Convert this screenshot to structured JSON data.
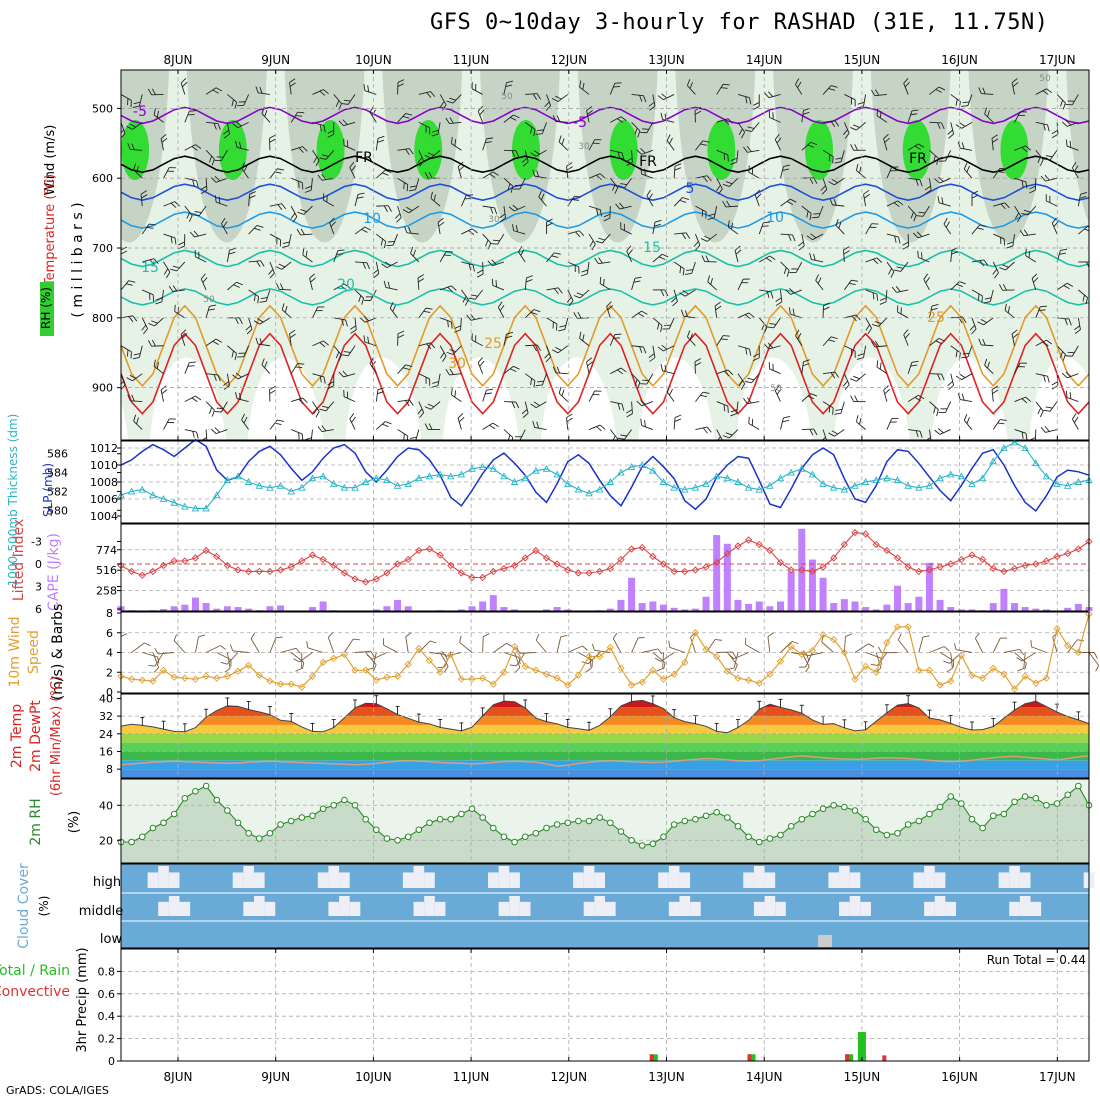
{
  "title": "GFS 0~10day 3-hourly for RASHAD (31E, 11.75N)",
  "footer": "GrADS: COLA/IGES",
  "colors": {
    "rh_green": "#00dd00",
    "rh_light": "#e6f2e6",
    "temp_purple": "#8800cc",
    "temp_blue": "#1e4fd8",
    "temp_cyan": "#1e9ae6",
    "temp_teal": "#1cc0a8",
    "temp_orange": "#e29a2a",
    "temp_red": "#dd2222",
    "slp_line": "#1a32c8",
    "thickness_line": "#2ab4c8",
    "lifted_index": "#dd4444",
    "cape_bar": "#c080ff",
    "wind_speed": "#e0a030",
    "rh2m": "#2a8a2a",
    "cloud_bg": "#6aaad6",
    "cloud_fill": "#eeeef6",
    "precip_total": "#22c022",
    "precip_conv": "#dd3333"
  },
  "chart_data": [
    {
      "id": "upper_air",
      "type": "heatmap",
      "ylabel_wind": "Wind (m/s)",
      "ylabel_temp": "Temperature (°C)",
      "ylabel_rh": "RH (%)",
      "ylabel_axis": "( m i l l i b a r s )",
      "y_ticks": [
        500,
        600,
        700,
        800,
        900
      ],
      "ylim": [
        975,
        445
      ],
      "x_ticks": [
        "8JUN",
        "9JUN",
        "10JUN",
        "11JUN",
        "12JUN",
        "13JUN",
        "14JUN",
        "15JUN",
        "16JUN",
        "17JUN"
      ],
      "contour_labels": [
        "-5",
        "-5",
        "FR",
        "FR",
        "FR",
        "5",
        "10",
        "10",
        "15",
        "15",
        "20",
        "25",
        "25",
        "30",
        "50",
        "50",
        "30",
        "30",
        "50",
        "50"
      ],
      "isotherms": [
        {
          "temp": -5,
          "mean_level": 510
        },
        {
          "temp": 0,
          "mean_level": 580
        },
        {
          "temp": 5,
          "mean_level": 620
        },
        {
          "temp": 10,
          "mean_level": 660
        },
        {
          "temp": 15,
          "mean_level": 715
        },
        {
          "temp": 20,
          "mean_level": 770
        },
        {
          "temp": 25,
          "mean_level": 840
        },
        {
          "temp": 30,
          "mean_level": 880
        }
      ]
    },
    {
      "id": "slp_thickness",
      "type": "line",
      "ylabel_left": "1000-500mb Thickness (dm)",
      "ylabel_right": "SLP (mb)",
      "left_ticks": [
        580,
        582,
        584,
        586
      ],
      "right_ticks": [
        1004,
        1006,
        1008,
        1010,
        1012
      ],
      "series": [
        {
          "name": "SLP (mb)",
          "axis": "right",
          "values": [
            1010,
            1010.6,
            1011.6,
            1012.4,
            1011.8,
            1011,
            1012,
            1013,
            1012.2,
            1009.4,
            1008.2,
            1008.6,
            1010.4,
            1011.6,
            1012.2,
            1011.2,
            1009.6,
            1008.2,
            1009.2,
            1010.8,
            1012,
            1012.4,
            1011.4,
            1009.2,
            1008,
            1009.4,
            1011,
            1012,
            1011.8,
            1010.6,
            1008.8,
            1006.2,
            1005.2,
            1007,
            1009,
            1010.6,
            1011.4,
            1010.2,
            1008.8,
            1006.8,
            1005.6,
            1007.8,
            1010.4,
            1011.2,
            1010.2,
            1008.2,
            1006.4,
            1005.2,
            1007.4,
            1009.8,
            1011,
            1009.8,
            1008.4,
            1005.8,
            1004.8,
            1006,
            1008.6,
            1010,
            1011,
            1010.8,
            1008.2,
            1005.4,
            1005,
            1007.2,
            1009.6,
            1011.2,
            1012,
            1011.2,
            1008.4,
            1006,
            1005.6,
            1007.6,
            1010.4,
            1011.8,
            1011.6,
            1010.2,
            1008.6,
            1007,
            1005.8,
            1007.6,
            1009.6,
            1011.4,
            1011.8,
            1010,
            1007.6,
            1005.6,
            1004.6,
            1006.4,
            1008.6,
            1009.4,
            1009.2,
            1008.8
          ]
        },
        {
          "name": "1000-500mb Thickness (dm)",
          "axis": "left",
          "values": [
            581.6,
            582.0,
            582.2,
            581.6,
            581.2,
            580.8,
            580.4,
            580.2,
            580.2,
            581.6,
            583.2,
            583.6,
            583.0,
            582.6,
            582.4,
            582.6,
            582.0,
            582.4,
            583.4,
            583.6,
            582.8,
            582.4,
            582.4,
            583.0,
            583.4,
            583.2,
            582.6,
            582.8,
            583.4,
            583.6,
            583.8,
            583.6,
            583.8,
            584.4,
            584.6,
            584.4,
            583.6,
            583.0,
            583.4,
            584.2,
            584.4,
            583.8,
            582.8,
            582.2,
            581.8,
            582.2,
            583.0,
            584.0,
            584.6,
            584.8,
            584.2,
            583.0,
            582.4,
            582.2,
            582.4,
            582.8,
            583.6,
            583.4,
            583.0,
            582.4,
            582.2,
            582.6,
            583.4,
            584.0,
            584.4,
            583.8,
            582.8,
            582.4,
            582.2,
            582.6,
            583.0,
            583.2,
            583.4,
            583.2,
            582.6,
            582.4,
            582.6,
            583.4,
            583.8,
            583.6,
            582.8,
            583.4,
            585.2,
            586.6,
            587.2,
            586.6,
            585.0,
            583.6,
            582.8,
            582.6,
            583.0,
            583.2
          ]
        }
      ]
    },
    {
      "id": "li_cape",
      "type": "bar",
      "ylabel_left": "Lifted Index",
      "ylabel_right": "CAPE (J/kg)",
      "li_ticks": [
        -3,
        0,
        3,
        6
      ],
      "cape_ticks": [
        258,
        516,
        774
      ],
      "series": [
        {
          "name": "Lifted Index",
          "values": [
            0.2,
            1.0,
            1.5,
            1.0,
            0.2,
            -0.4,
            -0.4,
            -0.8,
            -1.8,
            -1.0,
            0.2,
            0.8,
            1.0,
            1.0,
            1.0,
            0.8,
            0.4,
            -0.4,
            -1.2,
            -0.6,
            0.2,
            1.2,
            2.0,
            2.4,
            2.0,
            1.2,
            0.0,
            -0.6,
            -1.8,
            -2.0,
            -1.2,
            0.2,
            1.2,
            1.8,
            1.8,
            1.0,
            0.6,
            0.2,
            -0.8,
            -1.8,
            -0.8,
            0.0,
            0.8,
            1.2,
            1.2,
            1.0,
            0.6,
            -0.6,
            -2.0,
            -2.2,
            -1.0,
            0.0,
            1.0,
            1.0,
            0.8,
            0.4,
            -0.2,
            -1.4,
            -2.4,
            -3.2,
            -2.6,
            -1.8,
            -0.2,
            0.8,
            0.8,
            1.0,
            0.4,
            -0.8,
            -2.6,
            -4.2,
            -4.0,
            -2.6,
            -1.8,
            -0.8,
            0.4,
            1.0,
            0.8,
            0.4,
            0.0,
            -0.6,
            -1.2,
            -0.6,
            0.6,
            1.0,
            0.6,
            0.2,
            0.0,
            -0.4,
            -1.0,
            -1.4,
            -2.0,
            -3.0
          ]
        },
        {
          "name": "CAPE (J/kg)",
          "values": [
            60,
            10,
            5,
            10,
            25,
            60,
            80,
            170,
            100,
            30,
            60,
            50,
            30,
            10,
            60,
            70,
            5,
            5,
            50,
            120,
            10,
            5,
            5,
            5,
            20,
            60,
            140,
            60,
            5,
            5,
            10,
            5,
            20,
            60,
            120,
            200,
            50,
            20,
            5,
            5,
            20,
            50,
            20,
            5,
            5,
            10,
            30,
            140,
            420,
            100,
            120,
            80,
            40,
            20,
            30,
            180,
            960,
            850,
            140,
            90,
            120,
            60,
            120,
            500,
            1040,
            650,
            420,
            100,
            150,
            120,
            50,
            20,
            80,
            320,
            100,
            180,
            610,
            140,
            50,
            20,
            20,
            10,
            100,
            280,
            100,
            50,
            30,
            20,
            5,
            40,
            90,
            50
          ]
        }
      ]
    },
    {
      "id": "wind10m",
      "type": "line",
      "ylabel": "10m Wind Speed (m/s) & Barbs",
      "y_ticks": [
        0,
        2,
        4,
        6,
        8
      ],
      "ylim": [
        0,
        8
      ],
      "series": [
        {
          "name": "10m Wind Speed",
          "values": [
            1.6,
            1.3,
            1.2,
            1.1,
            2.2,
            1.5,
            1.4,
            1.3,
            1.6,
            1.4,
            1.6,
            2.1,
            2.7,
            1.7,
            1.1,
            0.8,
            0.8,
            0.5,
            1.6,
            3.0,
            3.4,
            3.8,
            2.2,
            2.2,
            1.2,
            1.5,
            1.6,
            2.8,
            4.4,
            3.2,
            2.0,
            3.8,
            1.3,
            1.3,
            1.4,
            0.8,
            2.0,
            4.6,
            2.6,
            2.2,
            1.8,
            1.4,
            0.7,
            1.7,
            3.6,
            3.6,
            4.5,
            2.4,
            0.7,
            1.0,
            2.2,
            1.3,
            1.8,
            3.0,
            6.0,
            4.3,
            3.6,
            2.1,
            1.4,
            1.2,
            0.9,
            1.8,
            3.1,
            4.6,
            3.8,
            4.2,
            5.8,
            5.3,
            4.0,
            1.3,
            2.6,
            2.0,
            5.0,
            6.6,
            6.6,
            2.2,
            2.2,
            0.7,
            1.1,
            3.7,
            1.7,
            1.4,
            2.4,
            1.8,
            0.3,
            1.6,
            0.9,
            1.4,
            6.4,
            4.7,
            4.0,
            7.9
          ]
        }
      ]
    },
    {
      "id": "temp2m",
      "type": "area",
      "ylabel": "2m Temp 2m DewPt (6hr Min/Max) (°C)",
      "y_ticks": [
        8,
        16,
        24,
        32,
        40
      ],
      "ylim": [
        4,
        42
      ],
      "series": [
        {
          "name": "2m Temp",
          "values": [
            27.5,
            28.3,
            27.8,
            27.1,
            26.1,
            25.1,
            24.9,
            26.8,
            31.5,
            34.5,
            36.6,
            36.4,
            35.0,
            33.9,
            32.7,
            30.1,
            29.6,
            27.1,
            25.1,
            24.9,
            26.8,
            31.3,
            35.7,
            37.8,
            37.6,
            35.3,
            32.7,
            31.0,
            29.3,
            28.5,
            26.9,
            26.1,
            25.3,
            27.0,
            32.1,
            37.1,
            38.8,
            38.5,
            35.7,
            31.1,
            29.5,
            28.5,
            26.9,
            26.3,
            25.6,
            27.8,
            31.7,
            36.6,
            38.6,
            39.1,
            37.5,
            35.4,
            31.3,
            29.5,
            28.6,
            27.4,
            25.1,
            24.5,
            26.8,
            30.1,
            35.1,
            37.4,
            36.0,
            34.8,
            33.3,
            30.3,
            28.3,
            28.6,
            26.7,
            25.3,
            25.8,
            29.7,
            33.5,
            37.0,
            37.6,
            35.7,
            31.1,
            30.3,
            28.7,
            26.9,
            25.7,
            25.9,
            27.3,
            31.0,
            34.7,
            37.6,
            38.7,
            36.3,
            33.8,
            31.8,
            30.3,
            28.6
          ]
        },
        {
          "name": "2m DewPt",
          "values": [
            10.0,
            10.4,
            10.8,
            11.2,
            11.4,
            11.6,
            11.4,
            11.2,
            11.0,
            10.8,
            10.6,
            10.8,
            11.2,
            11.4,
            11.6,
            11.4,
            11.2,
            11.0,
            10.8,
            10.6,
            10.4,
            10.2,
            10.0,
            10.2,
            10.6,
            11.2,
            11.6,
            11.8,
            11.6,
            11.4,
            11.0,
            10.8,
            10.6,
            10.4,
            10.6,
            11.0,
            11.4,
            11.6,
            11.4,
            11.2,
            10.4,
            9.4,
            9.8,
            10.6,
            11.2,
            11.6,
            11.8,
            11.6,
            11.4,
            11.2,
            11.0,
            11.2,
            11.6,
            12.0,
            12.4,
            12.8,
            12.6,
            12.2,
            11.8,
            11.6,
            11.8,
            12.4,
            13.0,
            13.6,
            14.0,
            13.6,
            13.2,
            12.8,
            12.6,
            12.4,
            12.6,
            13.0,
            13.2,
            13.0,
            12.8,
            12.4,
            12.0,
            11.6,
            11.4,
            11.6,
            12.0,
            12.6,
            13.2,
            13.6,
            13.8,
            13.4,
            13.0,
            12.6,
            12.2,
            12.8,
            13.6,
            14.0
          ]
        }
      ]
    },
    {
      "id": "rh2m",
      "type": "area",
      "ylabel": "2m RH (%)",
      "y_ticks": [
        20,
        40
      ],
      "ylim": [
        7,
        55
      ],
      "series": [
        {
          "name": "2m RH",
          "values": [
            19,
            19,
            22,
            27,
            30,
            35,
            44,
            48,
            51,
            43,
            37,
            30,
            24,
            21,
            24,
            29,
            31,
            33,
            34,
            38,
            40,
            43,
            40,
            32,
            26,
            21,
            20,
            22,
            26,
            30,
            32,
            32,
            35,
            38,
            33,
            27,
            22,
            19,
            22,
            24,
            27,
            29,
            30,
            31,
            31,
            33,
            30,
            25,
            20,
            17,
            18,
            22,
            29,
            31,
            32,
            34,
            36,
            33,
            28,
            22,
            19,
            21,
            23,
            28,
            32,
            35,
            38,
            40,
            39,
            37,
            32,
            26,
            23,
            24,
            29,
            31,
            35,
            39,
            45,
            41,
            32,
            27,
            34,
            35,
            42,
            45,
            44,
            40,
            41,
            46,
            51,
            40,
            30
          ]
        }
      ]
    },
    {
      "id": "cloud_cover",
      "type": "heatmap",
      "ylabel": "Cloud Cover (%)",
      "rows": [
        "high",
        "middle",
        "low"
      ]
    },
    {
      "id": "precip",
      "type": "bar",
      "ylabel": "Total / Rain Convective 3hr Precip (mm)",
      "legend_total": "Total / Rain",
      "legend_conv": "Convective",
      "run_total": "Run Total = 0.44",
      "y_ticks": [
        0,
        0.2,
        0.4,
        0.6,
        0.8
      ],
      "ylim": [
        0,
        1.0
      ],
      "x_ticks": [
        "8JUN",
        "9JUN",
        "10JUN",
        "11JUN",
        "12JUN",
        "13JUN",
        "14JUN",
        "15JUN",
        "16JUN",
        "17JUN"
      ],
      "series": [
        {
          "name": "Total / Rain",
          "points": [
            {
              "day_offset": 4.87,
              "value": 0.06
            },
            {
              "day_offset": 5.87,
              "value": 0.06
            },
            {
              "day_offset": 6.87,
              "value": 0.06
            },
            {
              "day_offset": 7.0,
              "value": 0.26
            }
          ]
        },
        {
          "name": "Convective",
          "points": [
            {
              "day_offset": 4.87,
              "value": 0.06
            },
            {
              "day_offset": 5.87,
              "value": 0.06
            },
            {
              "day_offset": 6.87,
              "value": 0.06
            },
            {
              "day_offset": 7.25,
              "value": 0.05
            }
          ]
        }
      ]
    }
  ]
}
